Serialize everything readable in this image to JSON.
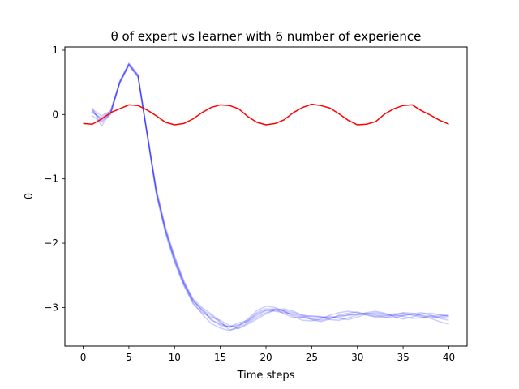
{
  "chart_data": {
    "type": "line",
    "title": "θ of expert vs learner with 6 number of experience",
    "xlabel": "Time steps",
    "ylabel": "θ",
    "xlim": [
      -2,
      42
    ],
    "ylim": [
      -3.6,
      1.05
    ],
    "xticks": [
      0,
      5,
      10,
      15,
      20,
      25,
      30,
      35,
      40
    ],
    "yticks": [
      1,
      0,
      -1,
      -2,
      -3
    ],
    "ytick_labels": [
      "1",
      "0",
      "−1",
      "−2",
      "−3"
    ],
    "grid": false,
    "colors": {
      "expert": "#ff0000",
      "learner": "#0000ff"
    },
    "series": [
      {
        "role": "expert",
        "x": [
          0,
          1,
          2,
          3,
          4,
          5,
          6,
          7,
          8,
          9,
          10,
          11,
          12,
          13,
          14,
          15,
          16,
          17,
          18,
          19,
          20,
          21,
          22,
          23,
          24,
          25,
          26,
          27,
          28,
          29,
          30,
          31,
          32,
          33,
          34,
          35,
          36,
          37,
          38,
          39,
          40
        ],
        "values": [
          -0.14,
          -0.15,
          -0.07,
          0.03,
          0.09,
          0.15,
          0.14,
          0.07,
          -0.02,
          -0.12,
          -0.16,
          -0.14,
          -0.07,
          0.03,
          0.11,
          0.15,
          0.14,
          0.09,
          -0.03,
          -0.12,
          -0.16,
          -0.14,
          -0.08,
          0.03,
          0.11,
          0.16,
          0.14,
          0.1,
          0.01,
          -0.09,
          -0.16,
          -0.15,
          -0.11,
          0.01,
          0.09,
          0.14,
          0.15,
          0.06,
          -0.01,
          -0.09,
          -0.15
        ]
      },
      {
        "role": "learner",
        "x": [
          1,
          2,
          3,
          4,
          5,
          6,
          7,
          8,
          9,
          10,
          11,
          12,
          13,
          14,
          15,
          16,
          17,
          18,
          19,
          20,
          21,
          22,
          23,
          24,
          25,
          26,
          27,
          28,
          29,
          30,
          31,
          32,
          33,
          34,
          35,
          36,
          37,
          38,
          39,
          40
        ],
        "values": [
          0.05,
          -0.08,
          0.02,
          0.5,
          0.78,
          0.6,
          -0.3,
          -1.2,
          -1.8,
          -2.25,
          -2.62,
          -2.88,
          -3.05,
          -3.18,
          -3.28,
          -3.3,
          -3.27,
          -3.22,
          -3.12,
          -3.05,
          -3.02,
          -3.05,
          -3.08,
          -3.12,
          -3.14,
          -3.15,
          -3.16,
          -3.13,
          -3.12,
          -3.11,
          -3.1,
          -3.1,
          -3.12,
          -3.13,
          -3.12,
          -3.11,
          -3.12,
          -3.14,
          -3.15,
          -3.16
        ]
      },
      {
        "role": "learner",
        "x": [
          1,
          2,
          3,
          4,
          5,
          6,
          7,
          8,
          9,
          10,
          11,
          12,
          13,
          14,
          15,
          16,
          17,
          18,
          19,
          20,
          21,
          22,
          23,
          24,
          25,
          26,
          27,
          28,
          29,
          30,
          31,
          32,
          33,
          34,
          35,
          36,
          37,
          38,
          39,
          40
        ],
        "values": [
          0.08,
          -0.02,
          0.05,
          0.52,
          0.8,
          0.62,
          -0.28,
          -1.15,
          -1.75,
          -2.2,
          -2.58,
          -2.86,
          -3.0,
          -3.1,
          -3.22,
          -3.35,
          -3.32,
          -3.24,
          -3.15,
          -3.08,
          -3.04,
          -3.06,
          -3.12,
          -3.16,
          -3.18,
          -3.2,
          -3.17,
          -3.15,
          -3.12,
          -3.1,
          -3.09,
          -3.12,
          -3.15,
          -3.16,
          -3.13,
          -3.1,
          -3.08,
          -3.12,
          -3.17,
          -3.2
        ]
      },
      {
        "role": "learner",
        "x": [
          1,
          2,
          3,
          4,
          5,
          6,
          7,
          8,
          9,
          10,
          11,
          12,
          13,
          14,
          15,
          16,
          17,
          18,
          19,
          20,
          21,
          22,
          23,
          24,
          25,
          26,
          27,
          28,
          29,
          30,
          31,
          32,
          33,
          34,
          35,
          36,
          37,
          38,
          39,
          40
        ],
        "values": [
          -0.02,
          -0.12,
          0.0,
          0.48,
          0.76,
          0.58,
          -0.32,
          -1.25,
          -1.85,
          -2.3,
          -2.66,
          -2.92,
          -3.1,
          -3.25,
          -3.32,
          -3.36,
          -3.3,
          -3.18,
          -3.05,
          -2.98,
          -3.0,
          -3.06,
          -3.14,
          -3.2,
          -3.21,
          -3.18,
          -3.12,
          -3.08,
          -3.06,
          -3.08,
          -3.12,
          -3.15,
          -3.16,
          -3.12,
          -3.08,
          -3.09,
          -3.13,
          -3.17,
          -3.22,
          -3.26
        ]
      },
      {
        "role": "learner",
        "x": [
          1,
          2,
          3,
          4,
          5,
          6,
          7,
          8,
          9,
          10,
          11,
          12,
          13,
          14,
          15,
          16,
          17,
          18,
          19,
          20,
          21,
          22,
          23,
          24,
          25,
          26,
          27,
          28,
          29,
          30,
          31,
          32,
          33,
          34,
          35,
          36,
          37,
          38,
          39,
          40
        ],
        "values": [
          0.1,
          -0.18,
          0.03,
          0.51,
          0.79,
          0.61,
          -0.29,
          -1.18,
          -1.78,
          -2.22,
          -2.6,
          -2.9,
          -3.02,
          -3.2,
          -3.26,
          -3.3,
          -3.24,
          -3.2,
          -3.08,
          -3.02,
          -3.03,
          -3.1,
          -3.16,
          -3.15,
          -3.13,
          -3.14,
          -3.19,
          -3.2,
          -3.16,
          -3.12,
          -3.08,
          -3.06,
          -3.09,
          -3.14,
          -3.18,
          -3.15,
          -3.1,
          -3.09,
          -3.11,
          -3.13
        ]
      },
      {
        "role": "learner",
        "x": [
          1,
          2,
          3,
          4,
          5,
          6,
          7,
          8,
          9,
          10,
          11,
          12,
          13,
          14,
          15,
          16,
          17,
          18,
          19,
          20,
          21,
          22,
          23,
          24,
          25,
          26,
          27,
          28,
          29,
          30,
          31,
          32,
          33,
          34,
          35,
          36,
          37,
          38,
          39,
          40
        ],
        "values": [
          0.03,
          -0.05,
          0.06,
          0.49,
          0.77,
          0.59,
          -0.31,
          -1.22,
          -1.82,
          -2.28,
          -2.64,
          -2.94,
          -3.08,
          -3.15,
          -3.2,
          -3.28,
          -3.33,
          -3.26,
          -3.18,
          -3.1,
          -3.04,
          -3.02,
          -3.06,
          -3.12,
          -3.17,
          -3.16,
          -3.14,
          -3.17,
          -3.19,
          -3.15,
          -3.1,
          -3.08,
          -3.1,
          -3.11,
          -3.14,
          -3.17,
          -3.16,
          -3.13,
          -3.12,
          -3.14
        ]
      },
      {
        "role": "learner",
        "x": [
          1,
          2,
          3,
          4,
          5,
          6,
          7,
          8,
          9,
          10,
          11,
          12,
          13,
          14,
          15,
          16,
          17,
          18,
          19,
          20,
          21,
          22,
          23,
          24,
          25,
          26,
          27,
          28,
          29,
          30,
          31,
          32,
          33,
          34,
          35,
          36,
          37,
          38,
          39,
          40
        ],
        "values": [
          0.06,
          -0.1,
          0.01,
          0.5,
          0.78,
          0.6,
          -0.3,
          -1.2,
          -1.8,
          -2.26,
          -2.62,
          -2.89,
          -3.04,
          -3.12,
          -3.24,
          -3.31,
          -3.28,
          -3.21,
          -3.1,
          -3.04,
          -3.06,
          -3.08,
          -3.1,
          -3.14,
          -3.19,
          -3.22,
          -3.18,
          -3.12,
          -3.09,
          -3.07,
          -3.11,
          -3.14,
          -3.13,
          -3.1,
          -3.09,
          -3.12,
          -3.15,
          -3.16,
          -3.14,
          -3.12
        ]
      }
    ]
  }
}
